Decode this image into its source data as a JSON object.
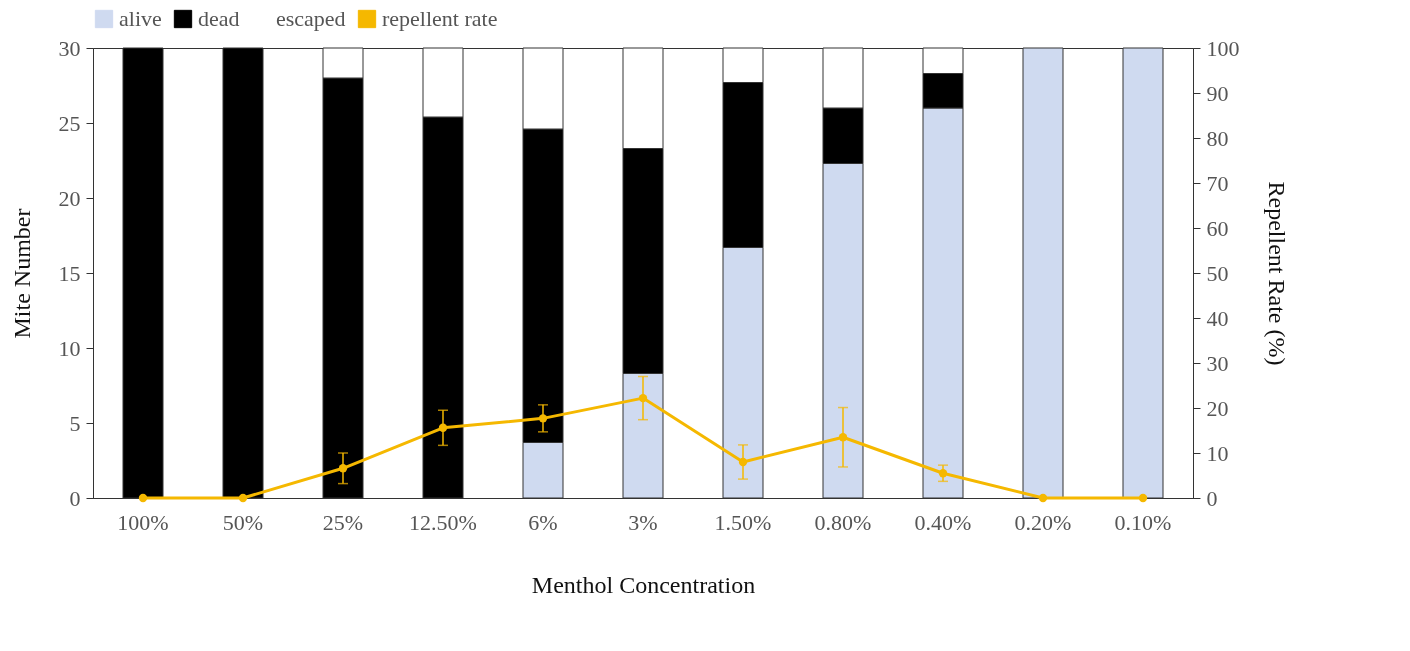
{
  "chart_data": {
    "type": "bar",
    "stacked": true,
    "xlabel": "Menthol Concentration",
    "ylabel": "Mite Number",
    "y2label": "Repellent Rate (%)",
    "categories": [
      "100%",
      "50%",
      "25%",
      "12.50%",
      "6%",
      "3%",
      "1.50%",
      "0.80%",
      "0.40%",
      "0.20%",
      "0.10%"
    ],
    "series": [
      {
        "name": "alive",
        "color": "#cfdaf0",
        "values": [
          0,
          0,
          0,
          0,
          3.7,
          8.3,
          16.7,
          22.3,
          26.0,
          30,
          30
        ]
      },
      {
        "name": "dead",
        "color": "#000000",
        "values": [
          30,
          30,
          28.0,
          25.4,
          20.9,
          15.0,
          11.0,
          3.7,
          2.3,
          0,
          0
        ]
      },
      {
        "name": "escaped",
        "color": "#ffffff",
        "values": [
          0,
          0,
          2.0,
          4.6,
          5.4,
          6.7,
          2.3,
          4.0,
          1.7,
          0,
          0
        ]
      },
      {
        "name": "repellent rate",
        "type": "line",
        "axis": "y2",
        "color": "#f5b800",
        "marker": "circle",
        "values": [
          0,
          0,
          6.6,
          15.6,
          17.7,
          22.2,
          8.0,
          13.5,
          5.5,
          0,
          0
        ],
        "errors": [
          null,
          null,
          3.4,
          3.9,
          3.0,
          4.8,
          3.8,
          6.6,
          1.8,
          null,
          null
        ]
      }
    ],
    "ylim": [
      0,
      30
    ],
    "yticks": [
      0,
      5,
      10,
      15,
      20,
      25,
      30
    ],
    "y2lim": [
      0,
      100
    ],
    "y2ticks": [
      0,
      10,
      20,
      30,
      40,
      50,
      60,
      70,
      80,
      90,
      100
    ],
    "legend": "top",
    "grid": false
  }
}
